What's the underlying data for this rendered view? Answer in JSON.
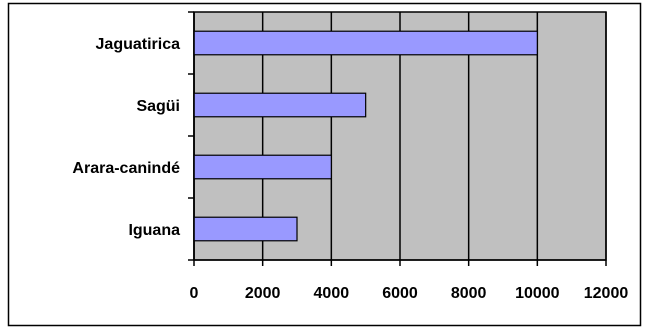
{
  "chart_data": {
    "type": "bar",
    "orientation": "horizontal",
    "categories": [
      "Jaguatirica",
      "Sagüi",
      "Arara-canindé",
      "Iguana"
    ],
    "values": [
      10000,
      5000,
      4000,
      3000
    ],
    "xlim": [
      0,
      12000
    ],
    "xticks": [
      0,
      2000,
      4000,
      6000,
      8000,
      10000,
      12000
    ],
    "grid": "vertical",
    "legend": "none",
    "title": "",
    "xlabel": "",
    "ylabel": "",
    "colors": {
      "plot_background": "#c0c0c0",
      "bar_fill": "#9999ff",
      "bar_stroke": "#000000",
      "gridline": "#000000",
      "frame": "#000000"
    }
  }
}
